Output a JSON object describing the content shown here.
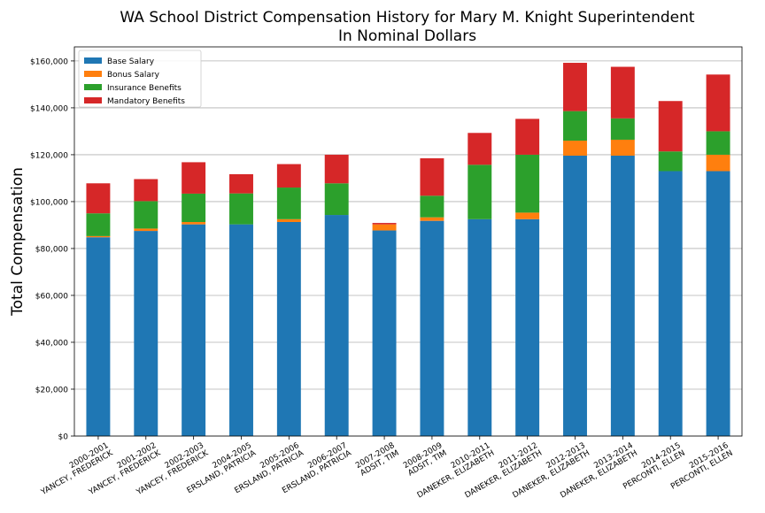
{
  "chart_data": {
    "type": "bar",
    "stacked": true,
    "title": "WA School District Compensation History for Mary M. Knight Superintendent",
    "subtitle": "In Nominal Dollars",
    "xlabel": "",
    "ylabel": "Total Compensation",
    "ylim": [
      0,
      166000
    ],
    "yticks": [
      "$0",
      "$20,000",
      "$40,000",
      "$60,000",
      "$80,000",
      "$100,000",
      "$120,000",
      "$140,000",
      "$160,000"
    ],
    "ytick_values": [
      0,
      20000,
      40000,
      60000,
      80000,
      100000,
      120000,
      140000,
      160000
    ],
    "grid": "horizontal",
    "legend_position": "top-left",
    "categories": [
      [
        "2000-2001",
        "YANCEY, FREDERICK"
      ],
      [
        "2001-2002",
        "YANCEY, FREDERICK"
      ],
      [
        "2002-2003",
        "YANCEY, FREDERICK"
      ],
      [
        "2004-2005",
        "ERSLAND, PATRICIA"
      ],
      [
        "2005-2006",
        "ERSLAND, PATRICIA"
      ],
      [
        "2006-2007",
        "ERSLAND, PATRICIA"
      ],
      [
        "2007-2008",
        "ADSIT, TIM"
      ],
      [
        "2008-2009",
        "ADSIT, TIM"
      ],
      [
        "2010-2011",
        "DANEKER, ELIZABETH"
      ],
      [
        "2011-2012",
        "DANEKER, ELIZABETH"
      ],
      [
        "2012-2013",
        "DANEKER, ELIZABETH"
      ],
      [
        "2013-2014",
        "DANEKER, ELIZABETH"
      ],
      [
        "2014-2015",
        "PERCONTI, ELLEN"
      ],
      [
        "2015-2016",
        "PERCONTI, ELLEN"
      ]
    ],
    "series": [
      {
        "name": "Base Salary",
        "color": "#1f77b4",
        "values": [
          84800,
          87500,
          90300,
          90300,
          91300,
          94300,
          87700,
          91800,
          92500,
          92500,
          119600,
          119600,
          113000,
          113000
        ]
      },
      {
        "name": "Bonus Salary",
        "color": "#ff7f0e",
        "values": [
          500,
          1000,
          1000,
          0,
          1200,
          0,
          2600,
          1500,
          0,
          2800,
          6400,
          6800,
          0,
          7000
        ]
      },
      {
        "name": "Insurance Benefits",
        "color": "#2ca02c",
        "values": [
          9700,
          11700,
          12100,
          13200,
          13500,
          13500,
          0,
          9200,
          23200,
          24700,
          12600,
          9100,
          8400,
          10000
        ]
      },
      {
        "name": "Mandatory Benefits",
        "color": "#d62728",
        "values": [
          12800,
          9400,
          13400,
          8200,
          10000,
          12200,
          600,
          16000,
          13600,
          15300,
          20600,
          22000,
          21500,
          24200
        ]
      }
    ]
  }
}
